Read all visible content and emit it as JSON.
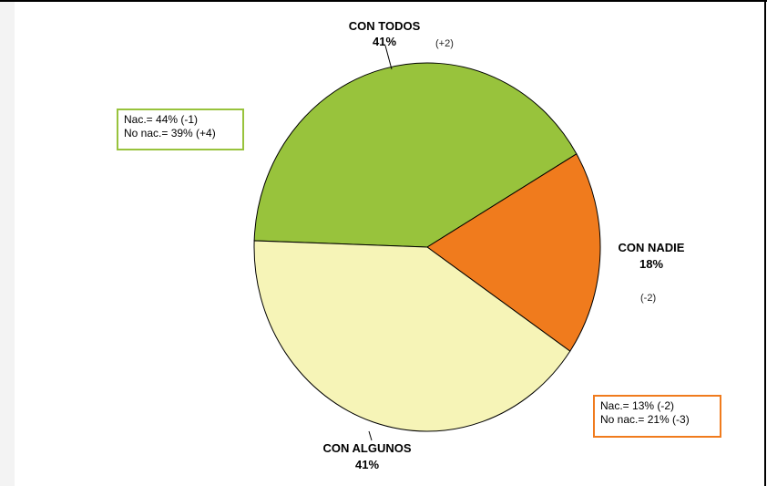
{
  "chart_data": {
    "type": "pie",
    "title": "",
    "slices": [
      {
        "label": "CON TODOS",
        "value": 41,
        "value_label": "41%",
        "change": "(+2)",
        "color": "#98c33c"
      },
      {
        "label": "CON NADIE",
        "value": 18,
        "value_label": "18%",
        "change": "(-2)",
        "color": "#f07b1d"
      },
      {
        "label": "CON ALGUNOS",
        "value": 41,
        "value_label": "41%",
        "change": "",
        "color": "#f6f4b7"
      }
    ],
    "annotations": [
      {
        "slice": "CON TODOS",
        "border_color": "#98c33c",
        "lines": [
          "Nac.= 44% (-1)",
          "No nac.= 39% (+4)"
        ]
      },
      {
        "slice": "CON NADIE",
        "border_color": "#f07b1d",
        "lines": [
          "Nac.= 13% (-2)",
          "No nac.= 21% (-3)"
        ]
      }
    ]
  }
}
